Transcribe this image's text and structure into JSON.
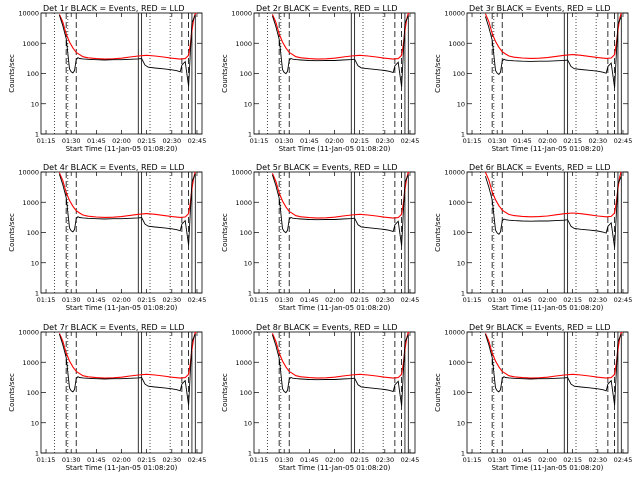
{
  "chart_data": {
    "type": "line",
    "layout": "3x3 grid",
    "x_tick_labels": [
      "01:15",
      "01:30",
      "01:45",
      "02:00",
      "02:15",
      "02:30",
      "02:45"
    ],
    "x_tick_minutes": [
      75,
      90,
      105,
      120,
      135,
      150,
      165
    ],
    "xlim_minutes": [
      72,
      168
    ],
    "y_tick_labels": [
      "1",
      "10",
      "100",
      "1000",
      "10000"
    ],
    "y_tick_values": [
      1,
      10,
      100,
      1000,
      10000
    ],
    "ylim": [
      1,
      10000
    ],
    "yscale": "log",
    "xlabel": "Start Time (11-Jan-05 01:08:20)",
    "ylabel": "Counts/sec",
    "series_colors": {
      "events": "#000000",
      "lld": "#ff0000"
    },
    "markers": {
      "dotted_minutes": [
        80,
        88,
        137,
        149
      ],
      "dashed_minutes": [
        87,
        93,
        156,
        160
      ],
      "solid_minutes": [
        130,
        132,
        162,
        164
      ]
    },
    "series": [
      {
        "name": "LLD",
        "color": "#ff0000",
        "x_minutes": [
          83,
          85,
          87,
          89,
          91,
          93,
          95,
          97,
          100,
          105,
          110,
          115,
          120,
          125,
          130,
          135,
          140,
          145,
          150,
          155,
          158,
          160,
          161,
          162,
          163,
          164,
          165
        ],
        "y": [
          9000,
          5000,
          2000,
          1100,
          700,
          500,
          420,
          360,
          330,
          310,
          300,
          305,
          320,
          350,
          380,
          400,
          380,
          350,
          320,
          300,
          310,
          400,
          900,
          2500,
          6000,
          10000,
          10000
        ]
      },
      {
        "name": "Events",
        "color": "#000000",
        "x_minutes": [
          83,
          85,
          87,
          88,
          89,
          90,
          91,
          92,
          93,
          94,
          95,
          97,
          100,
          105,
          110,
          115,
          120,
          125,
          130,
          132,
          134,
          136,
          140,
          145,
          150,
          153,
          155,
          156,
          158,
          160,
          162,
          164
        ],
        "y": [
          9000,
          4000,
          1500,
          500,
          150,
          120,
          110,
          130,
          300,
          350,
          330,
          320,
          310,
          300,
          295,
          300,
          300,
          310,
          320,
          330,
          200,
          170,
          160,
          150,
          140,
          130,
          120,
          200,
          260,
          40,
          5000,
          9000
        ]
      }
    ],
    "panels": [
      {
        "title": "Det 1r BLACK = Events, RED = LLD",
        "lld_scale": 1.0,
        "events_scale": 0.95
      },
      {
        "title": "Det 2r BLACK = Events, RED = LLD",
        "lld_scale": 1.0,
        "events_scale": 0.9
      },
      {
        "title": "Det 3r BLACK = Events, RED = LLD",
        "lld_scale": 1.05,
        "events_scale": 0.85
      },
      {
        "title": "Det 4r BLACK = Events, RED = LLD",
        "lld_scale": 1.05,
        "events_scale": 0.95
      },
      {
        "title": "Det 5r BLACK = Events, RED = LLD",
        "lld_scale": 1.0,
        "events_scale": 0.9
      },
      {
        "title": "Det 6r BLACK = Events, RED = LLD",
        "lld_scale": 1.1,
        "events_scale": 0.8
      },
      {
        "title": "Det 7r BLACK = Events, RED = LLD",
        "lld_scale": 1.0,
        "events_scale": 0.95
      },
      {
        "title": "Det 8r BLACK = Events, RED = LLD",
        "lld_scale": 1.0,
        "events_scale": 0.9
      },
      {
        "title": "Det 9r BLACK = Events, RED = LLD",
        "lld_scale": 1.0,
        "events_scale": 0.95
      }
    ]
  }
}
